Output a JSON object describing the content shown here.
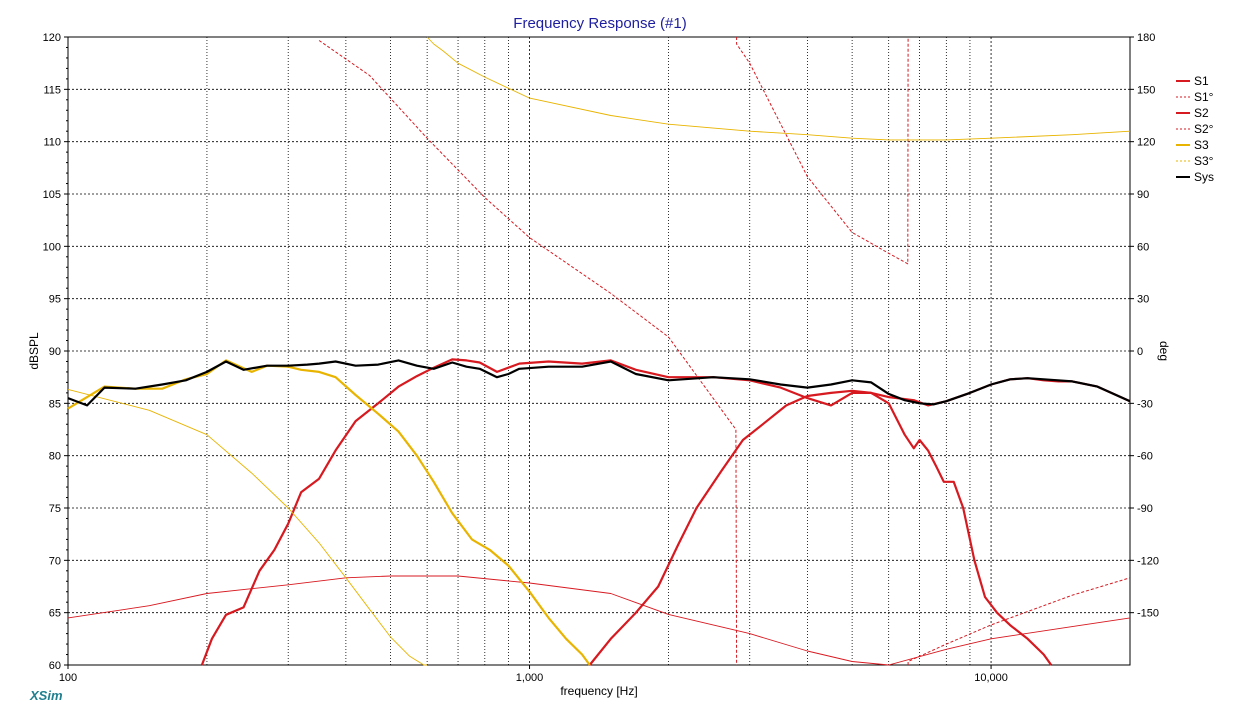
{
  "app": {
    "brand": "XSim"
  },
  "chart_data": {
    "type": "line",
    "title": "Frequency Response (#1)",
    "xlabel": "frequency [Hz]",
    "ylabel": "dBSPL",
    "y2label": "deg",
    "xscale": "log",
    "xlim": [
      100,
      20000
    ],
    "ylim": [
      60,
      120
    ],
    "y2lim": [
      -180,
      180
    ],
    "xticks": [
      100,
      1000,
      10000
    ],
    "xtick_labels": [
      "100",
      "1,000",
      "10,000"
    ],
    "yticks": [
      60,
      65,
      70,
      75,
      80,
      85,
      90,
      95,
      100,
      105,
      110,
      115,
      120
    ],
    "y2ticks": [
      -150,
      -120,
      -90,
      -60,
      -30,
      0,
      30,
      60,
      90,
      120,
      150,
      180
    ],
    "grid": true,
    "legend_position": "right",
    "legend": [
      "S1",
      "S1°",
      "S2",
      "S2°",
      "S3",
      "S3°",
      "Sys"
    ],
    "colors": {
      "S1": "#d71920",
      "S2": "#d71920",
      "S3": "#e8b400",
      "Sys": "#000000",
      "title": "#1e1ea0",
      "grid": "#000000",
      "brand": "#1f7f8f"
    },
    "series": [
      {
        "name": "S1",
        "axis": "left",
        "style": "solid",
        "x": [
          195,
          205,
          220,
          240,
          260,
          280,
          300,
          320,
          350,
          380,
          420,
          470,
          520,
          570,
          620,
          680,
          730,
          780,
          850,
          950,
          1100,
          1300,
          1500,
          1700,
          2000,
          2500,
          3000,
          3500,
          4000,
          4500,
          5000,
          5500,
          6000,
          6500,
          6800,
          7000,
          7300,
          7600,
          7900,
          8300,
          8700,
          9200,
          9700,
          10300,
          11000,
          12000,
          13000,
          13500
        ],
        "y": [
          60,
          62.5,
          64.8,
          65.5,
          69.0,
          71.0,
          73.5,
          76.5,
          77.8,
          80.5,
          83.3,
          85.0,
          86.6,
          87.6,
          88.4,
          89.2,
          89.1,
          88.9,
          88.0,
          88.8,
          89.0,
          88.8,
          89.1,
          88.2,
          87.5,
          87.5,
          87.2,
          86.5,
          85.5,
          84.8,
          86.0,
          86.0,
          85.0,
          82.0,
          80.7,
          81.5,
          80.5,
          79.0,
          77.5,
          77.5,
          75.0,
          70.0,
          66.5,
          65.0,
          63.8,
          62.5,
          61.0,
          60
        ]
      },
      {
        "name": "S1°",
        "axis": "right",
        "style": "dashed",
        "x": [
          350,
          450,
          600,
          800,
          1000,
          1500,
          2000,
          2800,
          2810,
          3000,
          4000,
          5000,
          6000,
          6600,
          6610,
          8000,
          10000,
          15000,
          20000
        ],
        "y": [
          178,
          158,
          122,
          88,
          65,
          33,
          8,
          -45,
          176,
          165,
          100,
          68,
          56,
          50,
          -178,
          -168,
          -157,
          -140,
          -130
        ]
      },
      {
        "name": "S2",
        "axis": "left",
        "style": "solid",
        "x": [
          1350,
          1500,
          1700,
          1900,
          2100,
          2300,
          2600,
          2900,
          3200,
          3600,
          4000,
          4500,
          5000,
          5500,
          6000,
          6800,
          7300,
          8000,
          9000,
          10000,
          11000,
          12000,
          13000,
          14000,
          15000,
          17000,
          20000
        ],
        "y": [
          60,
          62.5,
          65.0,
          67.5,
          71.5,
          75.0,
          78.5,
          81.5,
          83.0,
          84.8,
          85.7,
          86.0,
          86.2,
          86.0,
          85.6,
          85.3,
          84.8,
          85.2,
          86.0,
          86.8,
          87.3,
          87.4,
          87.2,
          87.1,
          87.1,
          86.6,
          85.2
        ]
      },
      {
        "name": "S2°",
        "axis": "right",
        "style": "thin",
        "x": [
          100,
          150,
          200,
          300,
          400,
          500,
          700,
          1000,
          1500,
          2000,
          3000,
          4000,
          5000,
          6000,
          8000,
          10000,
          15000,
          20000
        ],
        "y": [
          -153,
          -146,
          -139,
          -134,
          -130,
          -129,
          -129,
          -133,
          -139,
          -151,
          -162,
          -172,
          -178,
          -180,
          -171,
          -165,
          -158,
          -153
        ]
      },
      {
        "name": "S3",
        "axis": "left",
        "style": "solid",
        "x": [
          100,
          120,
          140,
          160,
          180,
          200,
          220,
          250,
          270,
          300,
          320,
          350,
          380,
          420,
          470,
          520,
          570,
          620,
          680,
          750,
          820,
          900,
          1000,
          1100,
          1200,
          1300,
          1350
        ],
        "y": [
          84.5,
          86.6,
          86.4,
          86.4,
          87.3,
          87.8,
          89.1,
          88.0,
          88.6,
          88.5,
          88.2,
          88.0,
          87.5,
          85.8,
          84.0,
          82.3,
          80.0,
          77.5,
          74.5,
          72.0,
          71.0,
          69.5,
          67.0,
          64.5,
          62.5,
          61.0,
          60
        ]
      },
      {
        "name": "S3°",
        "axis": "right",
        "style": "thin",
        "x": [
          100,
          150,
          200,
          250,
          300,
          350,
          400,
          450,
          500,
          550,
          590,
          600,
          620,
          650,
          700,
          800,
          1000,
          1500,
          2000,
          3000,
          4000,
          5000,
          6000,
          7000,
          8000,
          10000,
          15000,
          20000
        ],
        "y": [
          -22,
          -34,
          -48,
          -70,
          -90,
          -110,
          -130,
          -148,
          -164,
          -175,
          -180,
          180,
          176,
          172,
          165,
          157,
          145,
          135,
          130,
          126,
          124,
          122,
          121,
          121,
          121,
          122,
          124,
          126
        ]
      },
      {
        "name": "Sys",
        "axis": "left",
        "style": "solid",
        "x": [
          100,
          110,
          120,
          140,
          160,
          180,
          200,
          220,
          240,
          270,
          300,
          330,
          350,
          380,
          420,
          470,
          520,
          570,
          620,
          680,
          730,
          780,
          850,
          900,
          950,
          1100,
          1300,
          1500,
          1700,
          2000,
          2500,
          3000,
          3500,
          4000,
          4500,
          5000,
          5500,
          6000,
          6500,
          7000,
          7500,
          8000,
          9000,
          10000,
          11000,
          12000,
          15000,
          17000,
          20000
        ],
        "y": [
          85.5,
          84.8,
          86.5,
          86.4,
          86.8,
          87.2,
          88.0,
          89.0,
          88.2,
          88.6,
          88.6,
          88.7,
          88.8,
          89.0,
          88.6,
          88.7,
          89.1,
          88.6,
          88.3,
          88.9,
          88.5,
          88.3,
          87.5,
          87.8,
          88.3,
          88.5,
          88.5,
          89.0,
          87.8,
          87.2,
          87.5,
          87.3,
          86.8,
          86.5,
          86.8,
          87.2,
          87.0,
          85.9,
          85.3,
          85.0,
          84.9,
          85.2,
          86.0,
          86.8,
          87.3,
          87.4,
          87.1,
          86.6,
          85.2
        ]
      }
    ]
  }
}
